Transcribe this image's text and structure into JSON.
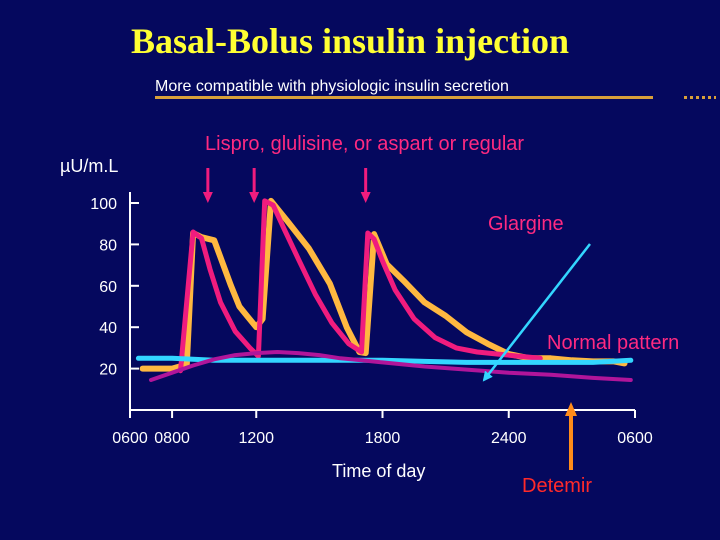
{
  "title": "Basal-Bolus insulin injection",
  "subtitle": "More compatible with physiologic insulin secretion",
  "colors": {
    "background": "#05085e",
    "title": "#ffff33",
    "insulin_curve": "#f01c7e",
    "normal_pattern": "#ffb840",
    "glargine": "#33d6ff",
    "detemir_curve": "#b0159a",
    "detemir_label": "#ff2a2a",
    "detemir_arrow": "#ff8c1a",
    "label_pink": "#ff2a80",
    "axis": "#ffffff"
  },
  "chart_data": {
    "type": "line",
    "ylabel": "µU/m.L",
    "xlabel": "Time of day",
    "yticks": [
      20,
      40,
      60,
      80,
      100
    ],
    "ylim": [
      0,
      110
    ],
    "xticks": [
      "0600",
      "0800",
      "1200",
      "1800",
      "2400",
      "0600"
    ],
    "xtick_hours": [
      6,
      8,
      12,
      18,
      24,
      30
    ],
    "xlim": [
      6,
      30
    ],
    "annotations": {
      "bolus": "Lispro, glulisine, or aspart or regular",
      "glargine": "Glargine",
      "normal": "Normal pattern",
      "detemir": "Detemir"
    },
    "bolus_arrow_hours": [
      9.7,
      11.9,
      17.2
    ],
    "series": [
      {
        "key": "normal",
        "name": "Normal pattern",
        "color": "#ffb840",
        "x": [
          6.6,
          8.0,
          8.7,
          9.0,
          9.4,
          10.0,
          10.8,
          11.2,
          11.6,
          12.0,
          12.3,
          12.7,
          13.5,
          14.5,
          15.5,
          16.3,
          16.9,
          17.2,
          17.6,
          18.2,
          19.0,
          20.0,
          21.0,
          22.0,
          23.0,
          24.0,
          25.0,
          26.0,
          27.0,
          28.0,
          29.0,
          29.5
        ],
        "y": [
          20.0,
          20.0,
          22.0,
          85.5,
          83.5,
          82.0,
          60.0,
          50.0,
          45.0,
          40.0,
          44.0,
          101.0,
          91.0,
          78.0,
          61.0,
          40.0,
          28.0,
          27.5,
          85.0,
          70.5,
          62.5,
          52.0,
          45.5,
          37.5,
          32.0,
          27.0,
          25.0,
          25.0,
          24.0,
          23.5,
          23.5,
          22.5
        ]
      },
      {
        "key": "insulin",
        "name": "Lispro, glulisine, or aspart or regular",
        "color": "#f01c7e",
        "x": [
          8.4,
          9.0,
          9.4,
          9.8,
          10.3,
          11.0,
          11.7,
          12.1,
          12.4,
          12.8,
          13.3,
          14.0,
          14.8,
          15.6,
          16.4,
          17.0,
          17.3,
          17.6,
          18.0,
          18.6,
          19.5,
          20.5,
          21.5,
          22.5,
          23.5,
          24.5,
          25.5
        ],
        "y": [
          19.0,
          86.0,
          83.0,
          68.0,
          52.0,
          38.0,
          30.0,
          26.0,
          101.0,
          99.0,
          88.0,
          73.0,
          56.0,
          42.0,
          32.0,
          28.0,
          85.5,
          82.5,
          72.0,
          58.0,
          44.0,
          35.0,
          30.0,
          28.0,
          27.0,
          26.0,
          25.0
        ]
      },
      {
        "key": "glargine",
        "name": "Glargine",
        "color": "#33d6ff",
        "x": [
          6.4,
          8.0,
          10.0,
          12.0,
          14.0,
          16.0,
          18.0,
          20.0,
          22.0,
          24.0,
          26.0,
          28.0,
          29.8
        ],
        "y": [
          25.0,
          25.0,
          24.0,
          24.0,
          24.0,
          24.0,
          24.0,
          23.5,
          23.0,
          23.0,
          23.0,
          23.0,
          24.0
        ]
      },
      {
        "key": "detemir",
        "name": "Detemir",
        "color": "#b0159a",
        "x": [
          7.0,
          8.0,
          9.0,
          10.0,
          11.0,
          12.0,
          13.0,
          14.0,
          15.0,
          16.0,
          17.0,
          18.0,
          20.0,
          22.0,
          24.0,
          26.0,
          28.0,
          29.8
        ],
        "y": [
          14.5,
          18.0,
          21.5,
          24.5,
          26.5,
          27.5,
          28.0,
          27.5,
          26.5,
          25.0,
          24.0,
          23.0,
          21.0,
          19.5,
          18.0,
          17.0,
          15.5,
          14.5
        ]
      }
    ]
  }
}
